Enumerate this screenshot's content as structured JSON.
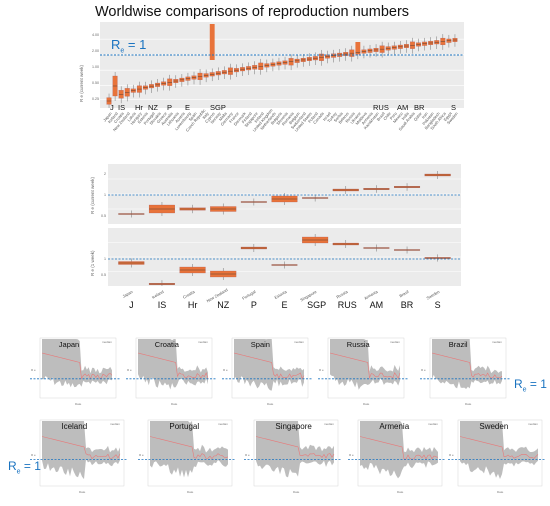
{
  "title": "Worldwise comparisons of reproduction numbers",
  "re_label": {
    "main": "R",
    "sub": "e",
    "rest": " = 1"
  },
  "colors": {
    "box": "#e8733a",
    "whisker": "#555555",
    "median": "#333333",
    "threshold": "#1a73c0",
    "panel_bg": "#ebebeb",
    "ci_band": "#bdbdbd",
    "line": "#e87a7a"
  },
  "country_codes": [
    "J",
    "IS",
    "Hr",
    "NZ",
    "P",
    "E",
    "SGP",
    "RUS",
    "AM",
    "BR",
    "S"
  ],
  "chart_data": [
    {
      "type": "box",
      "ylabel": "R e (current week)",
      "yticks": [
        "0.25",
        "0.50",
        "1.00",
        "2.00",
        "4.00"
      ],
      "threshold": 1,
      "categories": [
        "Japan",
        "Iceland",
        "Croatia",
        "New Zealand",
        "Latvia",
        "Hungary",
        "Estonia",
        "Portugal",
        "Slovakia",
        "Greece",
        "Australia",
        "Lithuania",
        "Austria",
        "Luxembourg",
        "Spain",
        "Czech Republic",
        "Italy",
        "Cyprus",
        "Norway",
        "Malta",
        "Germany",
        "France",
        "Denmark",
        "Finland",
        "Singapore",
        "Ireland",
        "United Kingdom",
        "Netherlands",
        "Bulgaria",
        "Slovenia",
        "Romania",
        "Belgium",
        "Switzerland",
        "United States",
        "Poland",
        "Canada",
        "Israel",
        "Turkey",
        "Serbia",
        "Belarus",
        "Russia",
        "Ukraine",
        "Moldova",
        "Armenia",
        "Kazakhstan",
        "Brazil",
        "Chile",
        "Peru",
        "Mexico",
        "India",
        "Saudi Arabia",
        "Qatar",
        "Iran",
        "Pakistan",
        "Bangladesh",
        "South Africa",
        "Egypt",
        "Sweden"
      ],
      "labeled_countries": {
        "J": "Japan",
        "IS": "Iceland",
        "Hr": "Croatia",
        "NZ": "New Zealand",
        "P": "Portugal",
        "E": "Estonia",
        "SGP": "Singapore",
        "RUS": "Russia",
        "AM": "Armenia",
        "BR": "Brazil",
        "S": "Sweden"
      }
    },
    {
      "type": "box",
      "ylabel": "R e (current week)",
      "yticks": [
        "0.5",
        "1",
        "2"
      ],
      "threshold": 1,
      "categories": [
        "Japan",
        "Iceland",
        "Croatia",
        "New Zealand",
        "Portugal",
        "Estonia",
        "Singapore",
        "Russia",
        "Armenia",
        "Brazil",
        "Sweden"
      ],
      "codes": [
        "J",
        "IS",
        "Hr",
        "NZ",
        "P",
        "E",
        "SGP",
        "RUS",
        "AM",
        "BR",
        "S"
      ]
    },
    {
      "type": "box",
      "ylabel": "R e (1 week)",
      "yticks": [
        "1",
        "0.5"
      ],
      "threshold": 1,
      "categories": [
        "Japan",
        "Iceland",
        "Croatia",
        "New Zealand",
        "Portugal",
        "Estonia",
        "Singapore",
        "Russia",
        "Armenia",
        "Brazil",
        "Sweden"
      ],
      "codes": [
        "J",
        "IS",
        "Hr",
        "NZ",
        "P",
        "E",
        "SGP",
        "RUS",
        "AM",
        "BR",
        "S"
      ]
    }
  ],
  "small_plots": [
    {
      "title": "Japan",
      "legend": "median",
      "xlabel": "Date",
      "ylabel": "R e"
    },
    {
      "title": "Croatia",
      "legend": "median",
      "xlabel": "Date",
      "ylabel": "R e"
    },
    {
      "title": "Spain",
      "legend": "median",
      "xlabel": "Date",
      "ylabel": "R e"
    },
    {
      "title": "Russia",
      "legend": "median",
      "xlabel": "Date",
      "ylabel": "R e"
    },
    {
      "title": "Brazil",
      "legend": "median",
      "xlabel": "Date",
      "ylabel": "R e"
    },
    {
      "title": "Iceland",
      "legend": "median",
      "xlabel": "Date",
      "ylabel": "R e"
    },
    {
      "title": "Portugal",
      "legend": "median",
      "xlabel": "Date",
      "ylabel": "R e"
    },
    {
      "title": "Singapore",
      "legend": "median",
      "xlabel": "Date",
      "ylabel": "R e"
    },
    {
      "title": "Armenia",
      "legend": "median",
      "xlabel": "Date",
      "ylabel": "R e"
    },
    {
      "title": "Sweden",
      "legend": "median",
      "xlabel": "Date",
      "ylabel": "R e"
    }
  ]
}
